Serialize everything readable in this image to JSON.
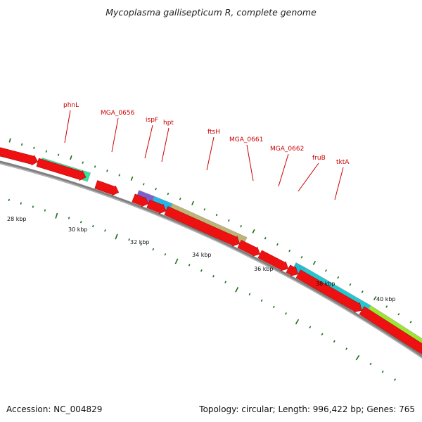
{
  "title": "Mycoplasma gallisepticum R, complete genome",
  "footer": {
    "accession_text": "Accession: NC_004829",
    "summary_text": "Topology: circular; Length: 996,422 bp; Genes: 765"
  },
  "colors": {
    "cds": "#ee1111",
    "backbone": "#808080",
    "tick": "#1a6e1a",
    "label": "#cc0000"
  },
  "gene_labels": [
    "phnL",
    "MGA_0656",
    "ispF",
    "hpt",
    "ftsH",
    "MGA_0661",
    "MGA_0662",
    "fruB",
    "tktA"
  ],
  "scale_labels": [
    "28 kbp",
    "30 kbp",
    "32 kbp",
    "34 kbp",
    "36 kbp",
    "38 kbp",
    "40 kbp"
  ]
}
